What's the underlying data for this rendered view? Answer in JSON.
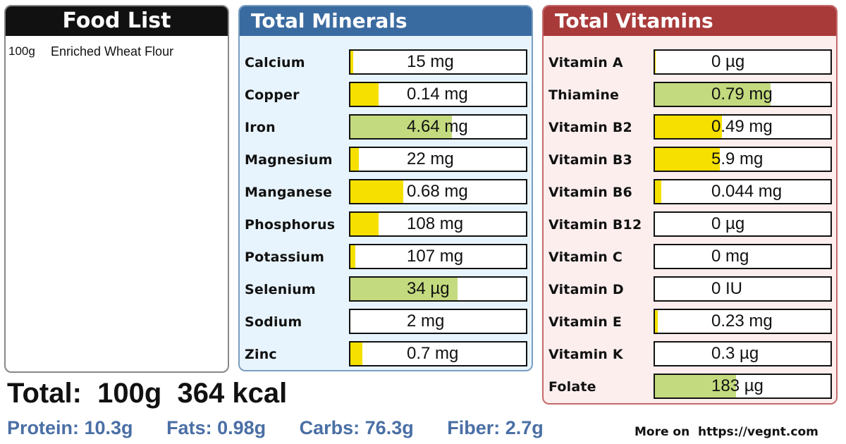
{
  "food_list": {
    "title": "Food List",
    "items": [
      {
        "amount": "100g",
        "name": "Enriched Wheat Flour"
      }
    ]
  },
  "minerals": {
    "title": "Total Minerals",
    "rows": [
      {
        "label": "Calcium",
        "value": "15 mg",
        "fill_fraction": 0.015,
        "color": "#f5e000"
      },
      {
        "label": "Copper",
        "value": "0.14 mg",
        "fill_fraction": 0.16,
        "color": "#f5e000"
      },
      {
        "label": "Iron",
        "value": "4.64 mg",
        "fill_fraction": 0.58,
        "color": "#c3da7e"
      },
      {
        "label": "Magnesium",
        "value": "22 mg",
        "fill_fraction": 0.05,
        "color": "#f5e000"
      },
      {
        "label": "Manganese",
        "value": "0.68 mg",
        "fill_fraction": 0.3,
        "color": "#f5e000"
      },
      {
        "label": "Phosphorus",
        "value": "108 mg",
        "fill_fraction": 0.16,
        "color": "#f5e000"
      },
      {
        "label": "Potassium",
        "value": "107 mg",
        "fill_fraction": 0.03,
        "color": "#f5e000"
      },
      {
        "label": "Selenium",
        "value": "34 µg",
        "fill_fraction": 0.61,
        "color": "#c3da7e"
      },
      {
        "label": "Sodium",
        "value": "2 mg",
        "fill_fraction": 0.0,
        "color": "#f5e000"
      },
      {
        "label": "Zinc",
        "value": "0.7 mg",
        "fill_fraction": 0.07,
        "color": "#f5e000"
      }
    ]
  },
  "vitamins": {
    "title": "Total Vitamins",
    "rows": [
      {
        "label": "Vitamin A",
        "value": "0 µg",
        "fill_fraction": 0.005,
        "color": "#f5e000"
      },
      {
        "label": "Thiamine",
        "value": "0.79 mg",
        "fill_fraction": 0.66,
        "color": "#c3da7e"
      },
      {
        "label": "Vitamin B2",
        "value": "0.49 mg",
        "fill_fraction": 0.38,
        "color": "#f5e000"
      },
      {
        "label": "Vitamin B3",
        "value": "5.9 mg",
        "fill_fraction": 0.37,
        "color": "#f5e000"
      },
      {
        "label": "Vitamin B6",
        "value": "0.044 mg",
        "fill_fraction": 0.035,
        "color": "#f5e000"
      },
      {
        "label": "Vitamin B12",
        "value": "0 µg",
        "fill_fraction": 0.0,
        "color": "#f5e000"
      },
      {
        "label": "Vitamin C",
        "value": "0 mg",
        "fill_fraction": 0.0,
        "color": "#f5e000"
      },
      {
        "label": "Vitamin D",
        "value": "0 IU",
        "fill_fraction": 0.0,
        "color": "#f5e000"
      },
      {
        "label": "Vitamin E",
        "value": "0.23 mg",
        "fill_fraction": 0.015,
        "color": "#f5e000"
      },
      {
        "label": "Vitamin K",
        "value": "0.3 µg",
        "fill_fraction": 0.0,
        "color": "#f5e000"
      },
      {
        "label": "Folate",
        "value": "183 µg",
        "fill_fraction": 0.46,
        "color": "#c3da7e"
      }
    ]
  },
  "totals": {
    "line": "Total:  100g  364 kcal"
  },
  "macros": {
    "protein": "Protein: 10.3g",
    "fats": "Fats: 0.98g",
    "carbs": "Carbs: 76.3g",
    "fiber": "Fiber: 2.7g"
  },
  "footer": {
    "more_on": "More on  https://vegnt.com"
  }
}
